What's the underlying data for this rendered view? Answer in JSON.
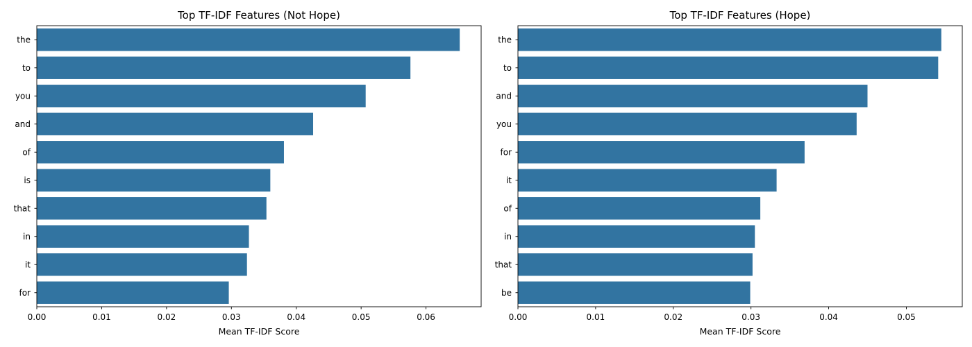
{
  "chart_data": [
    {
      "type": "bar",
      "orientation": "horizontal",
      "title": "Top TF-IDF Features (Not Hope)",
      "xlabel": "Mean TF-IDF Score",
      "ylabel": "",
      "categories": [
        "the",
        "to",
        "you",
        "and",
        "of",
        "is",
        "that",
        "in",
        "it",
        "for"
      ],
      "values": [
        0.0652,
        0.0576,
        0.0507,
        0.0426,
        0.0381,
        0.036,
        0.0354,
        0.0327,
        0.0324,
        0.0296
      ],
      "xlim": [
        0,
        0.0685
      ],
      "xticks": [
        "0.00",
        "0.01",
        "0.02",
        "0.03",
        "0.04",
        "0.05",
        "0.06"
      ],
      "color": "#3274a1",
      "grid": false
    },
    {
      "type": "bar",
      "orientation": "horizontal",
      "title": "Top TF-IDF Features (Hope)",
      "xlabel": "Mean TF-IDF Score",
      "ylabel": "",
      "categories": [
        "the",
        "to",
        "and",
        "you",
        "for",
        "it",
        "of",
        "in",
        "that",
        "be"
      ],
      "values": [
        0.0545,
        0.0541,
        0.045,
        0.0436,
        0.0369,
        0.0333,
        0.0312,
        0.0305,
        0.0302,
        0.0299
      ],
      "xlim": [
        0,
        0.0572
      ],
      "xticks": [
        "0.00",
        "0.01",
        "0.02",
        "0.03",
        "0.04",
        "0.05"
      ],
      "color": "#3274a1",
      "grid": false
    }
  ]
}
